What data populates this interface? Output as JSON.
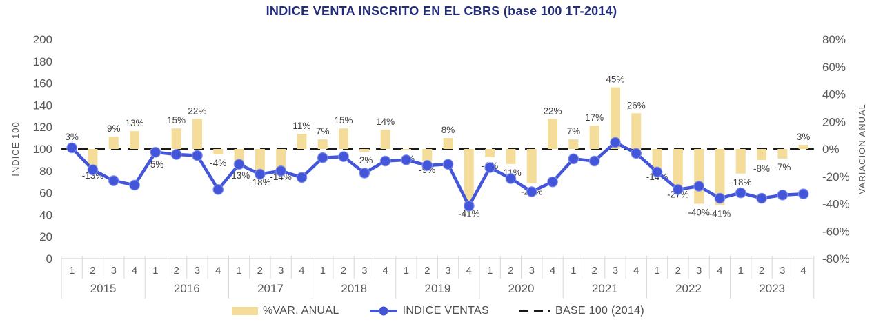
{
  "chart_data": {
    "type": "combo_bar_line",
    "title": "INDICE VENTA INSCRITO EN EL CBRS (base 100 1T-2014)",
    "left_axis": {
      "label": "INDICE 100",
      "min": 0,
      "max": 200,
      "step": 20,
      "ticks": [
        0,
        20,
        40,
        60,
        80,
        100,
        120,
        140,
        160,
        180,
        200
      ]
    },
    "right_axis": {
      "label": "VARIACION ANUAL",
      "min": -80,
      "max": 80,
      "step": 20,
      "suffix": "%",
      "ticks": [
        80,
        60,
        40,
        20,
        0,
        -20,
        -40,
        -60,
        -80
      ]
    },
    "years": [
      "2015",
      "2016",
      "2017",
      "2018",
      "2019",
      "2020",
      "2021",
      "2022",
      "2023"
    ],
    "quarter_labels": [
      "1",
      "2",
      "3",
      "4"
    ],
    "grid": false,
    "legend_position": "bottom",
    "series": [
      {
        "name": "%VAR. ANUAL",
        "type": "bar",
        "axis": "right",
        "unit": "%",
        "values": [
          3,
          -13,
          9,
          13,
          -5,
          15,
          22,
          -4,
          -13,
          -18,
          -14,
          11,
          7,
          15,
          -2,
          14,
          -1,
          -9,
          8,
          -41,
          -6,
          -11,
          -25,
          22,
          7,
          17,
          45,
          26,
          -14,
          -27,
          -40,
          -41,
          -18,
          -8,
          -7,
          3
        ]
      },
      {
        "name": "INDICE VENTAS",
        "type": "line",
        "axis": "left",
        "values": [
          101,
          81,
          71,
          67,
          97,
          95,
          94,
          63,
          86,
          77,
          80,
          74,
          92,
          93,
          78,
          89,
          90,
          85,
          86,
          48,
          83,
          73,
          61,
          70,
          91,
          89,
          106,
          96,
          79,
          63,
          66,
          55,
          60,
          55,
          58,
          59
        ]
      },
      {
        "name": "BASE 100 (2014)",
        "type": "dashed_baseline",
        "axis": "left",
        "value": 100
      }
    ]
  },
  "legend": {
    "items": [
      {
        "label": "%VAR. ANUAL",
        "swatch": "bar"
      },
      {
        "label": "INDICE VENTAS",
        "swatch": "line"
      },
      {
        "label": "BASE 100 (2014)",
        "swatch": "dash"
      }
    ]
  },
  "colors": {
    "title": "#232C7C",
    "bar": "#F4DD9B",
    "line": "#4355D9",
    "marker_ring": "#7C8CEA",
    "baseline": "#1A1A1A",
    "tick_text": "#595959",
    "label_text": "#404040",
    "axis_line": "#C9C9C9",
    "separator": "#D7D7D7",
    "legend_text": "#4D4D4D"
  }
}
